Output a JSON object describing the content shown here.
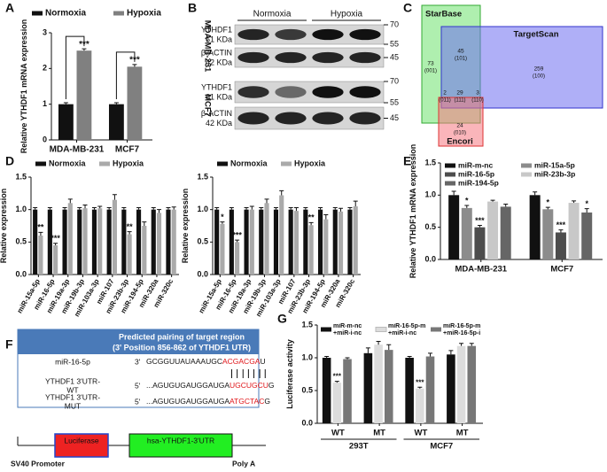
{
  "panel_letters": [
    "A",
    "B",
    "C",
    "D",
    "E",
    "F",
    "G"
  ],
  "chart_data": [
    {
      "type": "bar",
      "categories": [
        "MDA-MB-231",
        "MCF7"
      ],
      "y_label": "Relative YTHDF1 mRNA expression",
      "ylim": [
        0,
        3
      ],
      "yticks": [
        0,
        1,
        2,
        3
      ],
      "series": [
        {
          "name": "Normoxia",
          "color": "#111111",
          "values": [
            1.0,
            1.0
          ],
          "errors": [
            0.04,
            0.04
          ]
        },
        {
          "name": "Hypoxia",
          "color": "#808080",
          "values": [
            2.5,
            2.05
          ],
          "errors": [
            0.05,
            0.06
          ],
          "significance": [
            "***",
            "***"
          ]
        }
      ]
    },
    {
      "type": "bar",
      "categories": [
        "miR-15a-5p",
        "miR-16-5p",
        "miR-19a-3p",
        "miR-19b-3p",
        "miR-103a-3p",
        "miR-107",
        "miR-23b-3p",
        "miR-194-5p",
        "miR-320a",
        "miR-320c"
      ],
      "y_label": "Relative expression",
      "ylim": [
        0,
        1.5
      ],
      "yticks": [
        {
          "value": 0,
          "label": "0.0"
        },
        0.5,
        {
          "value": 1,
          "label": "1.0"
        },
        1.5
      ],
      "series": [
        {
          "name": "Normoxia",
          "color": "#111111",
          "values": [
            1,
            1,
            1,
            1,
            1,
            1,
            1,
            1,
            1,
            1
          ],
          "errors": [
            0.03,
            0.03,
            0.03,
            0.03,
            0.03,
            0.03,
            0.03,
            0.03,
            0.03,
            0.03
          ]
        },
        {
          "name": "Hypoxia",
          "color": "#aaaaaa",
          "values": [
            0.6,
            0.45,
            1.1,
            1.02,
            1.02,
            1.15,
            0.62,
            0.75,
            0.95,
            1.0
          ],
          "errors": [
            0.05,
            0.03,
            0.06,
            0.05,
            0.03,
            0.08,
            0.04,
            0.06,
            0.05,
            0.04
          ],
          "significance": [
            "**",
            "***",
            null,
            null,
            null,
            null,
            "**",
            null,
            null,
            null
          ]
        }
      ]
    },
    {
      "type": "bar",
      "categories": [
        "miR-15a-5p",
        "miR-16-5p",
        "miR-19a-3p",
        "miR-19b-3p",
        "miR-103a-3p",
        "miR-107",
        "miR-23b-3p",
        "miR-194-5p",
        "miR-320a",
        "miR-320c"
      ],
      "y_label": "Relative expression",
      "ylim": [
        0,
        1.5
      ],
      "yticks": [
        {
          "value": 0,
          "label": "0.0"
        },
        0.5,
        {
          "value": 1,
          "label": "1.0"
        },
        1.5
      ],
      "series": [
        {
          "name": "Normoxia",
          "color": "#111111",
          "values": [
            1,
            1,
            1,
            1,
            1,
            1,
            1,
            1,
            1,
            1
          ],
          "errors": [
            0.03,
            0.03,
            0.03,
            0.03,
            0.03,
            0.03,
            0.03,
            0.03,
            0.03,
            0.03
          ]
        },
        {
          "name": "Hypoxia",
          "color": "#aaaaaa",
          "values": [
            0.78,
            0.5,
            1.0,
            1.1,
            1.22,
            0.98,
            0.76,
            0.85,
            0.97,
            1.05
          ],
          "errors": [
            0.03,
            0.03,
            0.05,
            0.06,
            0.07,
            0.05,
            0.04,
            0.07,
            0.05,
            0.08
          ],
          "significance": [
            "*",
            "***",
            null,
            null,
            null,
            null,
            "**",
            null,
            null,
            null
          ]
        }
      ]
    },
    {
      "type": "bar",
      "categories": [
        "MDA-MB-231",
        "MCF7"
      ],
      "y_label": "Relative YTHDF1 mRNA expression",
      "ylim": [
        0,
        1.5
      ],
      "yticks": [
        {
          "value": 0,
          "label": "0.0"
        },
        0.5,
        {
          "value": 1,
          "label": "1.0"
        },
        1.5
      ],
      "series": [
        {
          "name": "miR-m-nc",
          "color": "#111111",
          "values": [
            1.0,
            1.0
          ],
          "errors": [
            0.06,
            0.05
          ]
        },
        {
          "name": "miR-15a-5p",
          "color": "#8c8c8c",
          "values": [
            0.8,
            0.78
          ],
          "errors": [
            0.04,
            0.03
          ],
          "significance": [
            "*",
            "*"
          ]
        },
        {
          "name": "miR-16-5p",
          "color": "#4d4d4d",
          "values": [
            0.5,
            0.42
          ],
          "errors": [
            0.03,
            0.04
          ],
          "significance": [
            "***",
            "***"
          ]
        },
        {
          "name": "miR-23b-3p",
          "color": "#c8c8c8",
          "values": [
            0.9,
            0.88
          ],
          "errors": [
            0.02,
            0.03
          ]
        },
        {
          "name": "miR-194-5p",
          "color": "#666666",
          "values": [
            0.82,
            0.73
          ],
          "errors": [
            0.04,
            0.06
          ],
          "significance": [
            null,
            "*"
          ]
        }
      ]
    },
    {
      "type": "bar",
      "categories": [
        "WT",
        "MT",
        "WT",
        "MT"
      ],
      "groups": [
        "293T",
        "MCF7"
      ],
      "y_label": "Luciferase activity",
      "ylim": [
        0,
        1.5
      ],
      "yticks": [
        {
          "value": 0,
          "label": "0.0"
        },
        0.5,
        {
          "value": 1,
          "label": "1.0"
        },
        1.5
      ],
      "series": [
        {
          "name": "miR-m-nc +miR-i-nc",
          "color": "#111111",
          "values": [
            1.0,
            1.07,
            1.0,
            1.05
          ],
          "errors": [
            0.02,
            0.08,
            0.02,
            0.06
          ]
        },
        {
          "name": "miR-16-5p-m +miR-i-nc",
          "color": "#dcdcdc",
          "values": [
            0.62,
            1.2,
            0.53,
            1.18
          ],
          "errors": [
            0.02,
            0.05,
            0.02,
            0.04
          ],
          "significance": [
            "***",
            null,
            "***",
            null
          ]
        },
        {
          "name": "miR-16-5p-m +miR-16-5p-i",
          "color": "#777777",
          "values": [
            0.98,
            1.12,
            1.02,
            1.18
          ],
          "errors": [
            0.02,
            0.08,
            0.05,
            0.04
          ]
        }
      ]
    }
  ],
  "blot": {
    "conditions": [
      "Normoxia",
      "Hypoxia"
    ],
    "groups": [
      {
        "cell_line": "MDA-MB-231",
        "proteins": [
          {
            "name": "YTHDF1",
            "size": "61 KDa"
          },
          {
            "name": "β-ACTIN",
            "size": "42 KDa"
          }
        ],
        "markers": [
          "70",
          "55",
          "45"
        ]
      },
      {
        "cell_line": "MCF7",
        "proteins": [
          {
            "name": "YTHDF1",
            "size": "61 KDa"
          },
          {
            "name": "β-ACTIN",
            "size": "42 KDa"
          }
        ],
        "markers": [
          "70",
          "55",
          "45"
        ]
      }
    ]
  },
  "venn": {
    "sets": [
      "StarBase",
      "TargetScan",
      "Encori"
    ],
    "regions": [
      {
        "count": "73",
        "code": "(001)"
      },
      {
        "count": "45",
        "code": "(101)"
      },
      {
        "count": "259",
        "code": "(100)"
      },
      {
        "count": "2",
        "code": "(011)"
      },
      {
        "count": "29",
        "code": "(111)"
      },
      {
        "count": "3",
        "code": "(110)"
      },
      {
        "count": "24",
        "code": "(010)"
      }
    ]
  },
  "pairing": {
    "title": "Predicted pairing of target region",
    "subtitle": "(3' Position 856-862 of YTHDF1 UTR)",
    "rows": [
      {
        "label": [
          "miR-16-5p"
        ],
        "end": "3'",
        "seq": [
          "GCGGUUAUAAAUGC",
          "ACGACGA",
          "U"
        ]
      },
      {
        "label": [
          "YTHDF1 3'UTR-",
          "WT"
        ],
        "end": "5'",
        "seq": [
          "...AGUGUGAUGGAUGA",
          "UGCUGCU",
          "G"
        ]
      },
      {
        "label": [
          "YTHDF1 3'UTR-",
          "MUT"
        ],
        "end": "5'",
        "seq": [
          "...AGUGUGAUGGAUGA",
          "ATGCTAC",
          "G"
        ]
      }
    ],
    "construct": {
      "reporter": "Luciferase",
      "utr": "hsa-YTHDF1-3'UTR",
      "promoter": "SV40 Promoter",
      "polya": "Poly A"
    }
  }
}
